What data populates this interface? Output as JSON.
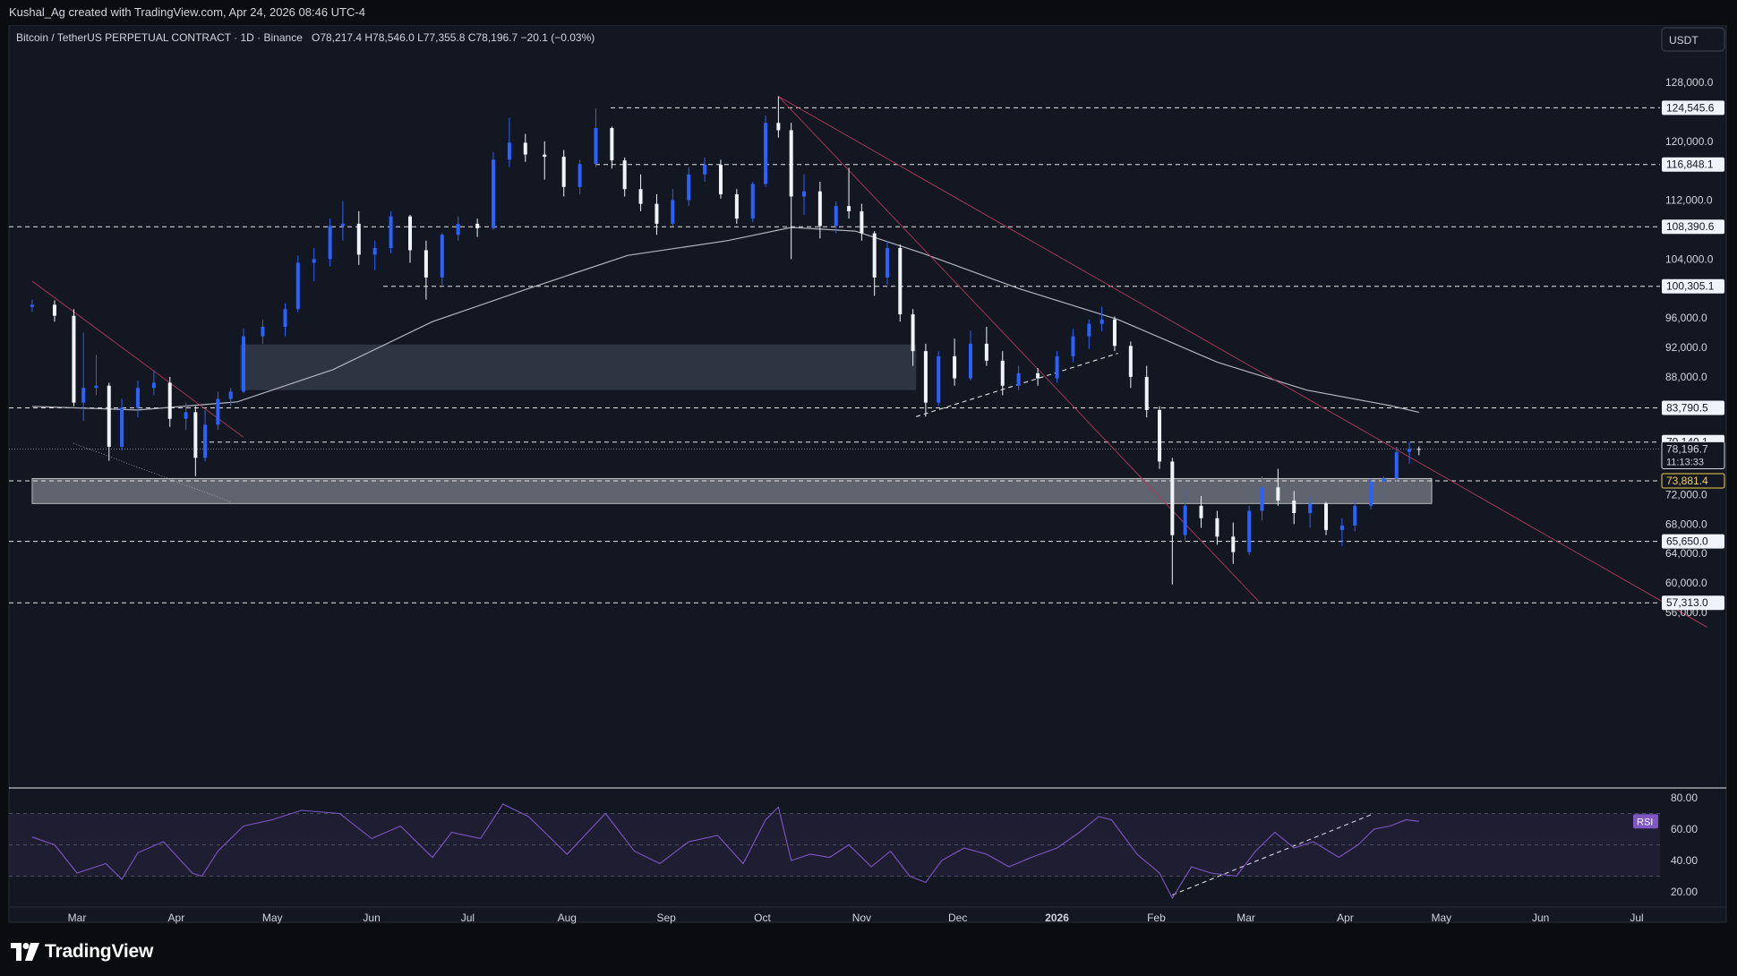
{
  "header": {
    "credit": "Kushal_Ag created with TradingView.com, Apr 24, 2026 08:46 UTC-4"
  },
  "chart_header": {
    "title": "Bitcoin / TetherUS PERPETUAL CONTRACT · 1D · Binance",
    "ohlc": "O78,217.4  H78,546.0  L77,355.8  C78,196.7  −20.1 (−0.03%)",
    "currency_button": "USDT"
  },
  "footer": {
    "brand": "TradingView"
  },
  "chart_data": {
    "type": "candlestick",
    "price_axis": {
      "min": 53000,
      "max": 131000,
      "ticks": [
        "128,000.0",
        "120,000.0",
        "112,000.0",
        "104,000.0",
        "96,000.0",
        "92,000.0",
        "88,000.0",
        "72,000.0",
        "68,000.0",
        "64,000.0",
        "60,000.0",
        "56,000.0"
      ],
      "tick_values": [
        128000,
        120000,
        112000,
        104000,
        96000,
        92000,
        88000,
        72000,
        68000,
        64000,
        60000,
        56000
      ]
    },
    "time_axis": {
      "labels": [
        "Mar",
        "Apr",
        "May",
        "Jun",
        "Jul",
        "Aug",
        "Sep",
        "Oct",
        "Nov",
        "Dec",
        "2026",
        "Feb",
        "Mar",
        "Apr",
        "May",
        "Jun",
        "Jul"
      ],
      "bold_label": "2026",
      "start": "2025-02-15",
      "end": "2026-07-31"
    },
    "horizontal_levels": [
      {
        "price": 124545.6,
        "label": "124,545.6"
      },
      {
        "price": 116848.1,
        "label": "116,848.1"
      },
      {
        "price": 108390.6,
        "label": "108,390.6"
      },
      {
        "price": 100305.1,
        "label": "100,305.1"
      },
      {
        "price": 83790.5,
        "label": "83,790.5"
      },
      {
        "price": 79140.1,
        "label": "79,140.1"
      },
      {
        "price": 73881.4,
        "label": "73,881.4",
        "highlight": "#f0d24a"
      },
      {
        "price": 65650.0,
        "label": "65,650.0"
      },
      {
        "price": 57313.0,
        "label": "57,313.0"
      }
    ],
    "last_price": {
      "price": 78196.7,
      "label": "78,196.7",
      "countdown": "11:13:33"
    },
    "zones": [
      {
        "from": "2025-04-21",
        "to": "2025-11-18",
        "low": 86200,
        "high": 92400
      },
      {
        "from": "2025-02-15",
        "to": "2026-04-28",
        "low": 70800,
        "high": 74200
      }
    ],
    "moving_average_200": [
      [
        "2025-02-15",
        84000
      ],
      [
        "2025-03-20",
        83500
      ],
      [
        "2025-04-20",
        84600
      ],
      [
        "2025-05-20",
        89000
      ],
      [
        "2025-06-20",
        95500
      ],
      [
        "2025-07-20",
        100000
      ],
      [
        "2025-08-20",
        104500
      ],
      [
        "2025-09-20",
        106500
      ],
      [
        "2025-10-10",
        108300
      ],
      [
        "2025-10-30",
        107800
      ],
      [
        "2025-11-20",
        104800
      ],
      [
        "2025-12-20",
        100000
      ],
      [
        "2026-01-20",
        95800
      ],
      [
        "2026-02-20",
        90000
      ],
      [
        "2026-03-20",
        86200
      ],
      [
        "2026-04-15",
        84100
      ],
      [
        "2026-04-24",
        83200
      ]
    ],
    "trendlines": [
      {
        "from": [
          "2025-02-15",
          101000
        ],
        "to": [
          "2025-04-22",
          79800
        ],
        "color": "#b3385c"
      },
      {
        "from": [
          "2025-10-06",
          126100
        ],
        "to": [
          "2026-07-23",
          54000
        ],
        "color": "#b3385c"
      },
      {
        "from": [
          "2025-10-06",
          126100
        ],
        "to": [
          "2026-03-05",
          57500
        ],
        "color": "#b3385c"
      },
      {
        "from": [
          "2025-11-18",
          82600
        ],
        "to": [
          "2026-01-20",
          91200
        ],
        "color": "#e0e0e0",
        "dashed": true
      },
      {
        "from": [
          "2026-02-06",
          59800
        ],
        "to": [
          "2026-04-10",
          69500
        ],
        "color": "#e0e0e0",
        "dashed": true,
        "pane": "rsi"
      }
    ],
    "candles": [
      [
        "2025-02-15",
        97500,
        98500,
        96800,
        97800
      ],
      [
        "2025-02-22",
        97800,
        98400,
        95500,
        96300
      ],
      [
        "2025-02-28",
        96300,
        97200,
        84000,
        84500
      ],
      [
        "2025-03-03",
        84500,
        94000,
        82000,
        86500
      ],
      [
        "2025-03-07",
        86500,
        91000,
        85500,
        86800
      ],
      [
        "2025-03-11",
        86800,
        87200,
        76600,
        78500
      ],
      [
        "2025-03-15",
        78500,
        85000,
        78000,
        83800
      ],
      [
        "2025-03-20",
        83800,
        87500,
        82500,
        86500
      ],
      [
        "2025-03-25",
        86500,
        88800,
        85500,
        87200
      ],
      [
        "2025-03-30",
        87200,
        88000,
        81200,
        82300
      ],
      [
        "2025-04-04",
        82300,
        84500,
        80800,
        83200
      ],
      [
        "2025-04-07",
        83200,
        84000,
        74500,
        77000
      ],
      [
        "2025-04-10",
        77000,
        83500,
        76500,
        81500
      ],
      [
        "2025-04-14",
        81500,
        86000,
        80800,
        85000
      ],
      [
        "2025-04-18",
        85000,
        86500,
        84000,
        86000
      ],
      [
        "2025-04-22",
        86000,
        94500,
        85800,
        93500
      ],
      [
        "2025-04-28",
        93500,
        95800,
        92500,
        94800
      ],
      [
        "2025-05-05",
        94800,
        98000,
        93500,
        97200
      ],
      [
        "2025-05-09",
        97200,
        104500,
        96800,
        103500
      ],
      [
        "2025-05-14",
        103500,
        105500,
        101000,
        104000
      ],
      [
        "2025-05-19",
        104000,
        109500,
        103000,
        108500
      ],
      [
        "2025-05-23",
        108500,
        111900,
        106500,
        108800
      ],
      [
        "2025-05-28",
        108800,
        110500,
        103200,
        104600
      ],
      [
        "2025-06-02",
        104600,
        106500,
        102500,
        105500
      ],
      [
        "2025-06-07",
        105500,
        110500,
        104800,
        109800
      ],
      [
        "2025-06-13",
        109800,
        110000,
        103500,
        105200
      ],
      [
        "2025-06-18",
        105200,
        106500,
        98500,
        101500
      ],
      [
        "2025-06-23",
        101500,
        107500,
        100500,
        107300
      ],
      [
        "2025-06-28",
        107300,
        109800,
        106500,
        108800
      ],
      [
        "2025-07-04",
        108800,
        109500,
        107000,
        108200
      ],
      [
        "2025-07-09",
        108200,
        118500,
        108000,
        117500
      ],
      [
        "2025-07-14",
        117500,
        123200,
        116500,
        119800
      ],
      [
        "2025-07-19",
        119800,
        121000,
        117200,
        118200
      ],
      [
        "2025-07-25",
        118200,
        120000,
        114800,
        117900
      ],
      [
        "2025-07-31",
        117900,
        118800,
        112500,
        113800
      ],
      [
        "2025-08-05",
        113800,
        117500,
        112800,
        116900
      ],
      [
        "2025-08-10",
        116900,
        124500,
        116500,
        121800
      ],
      [
        "2025-08-15",
        121800,
        122000,
        116300,
        117400
      ],
      [
        "2025-08-19",
        117400,
        117800,
        112500,
        113500
      ],
      [
        "2025-08-24",
        113500,
        115500,
        110500,
        111500
      ],
      [
        "2025-08-29",
        111500,
        112800,
        107300,
        108800
      ],
      [
        "2025-09-03",
        108800,
        113500,
        108500,
        112000
      ],
      [
        "2025-09-08",
        112000,
        116500,
        111200,
        115500
      ],
      [
        "2025-09-13",
        115500,
        117800,
        114500,
        116800
      ],
      [
        "2025-09-18",
        116800,
        117500,
        112200,
        112800
      ],
      [
        "2025-09-23",
        112800,
        113500,
        108800,
        109500
      ],
      [
        "2025-09-28",
        109500,
        114500,
        109000,
        114200
      ],
      [
        "2025-10-02",
        114200,
        123500,
        113800,
        122500
      ],
      [
        "2025-10-06",
        122500,
        126100,
        120500,
        121500
      ],
      [
        "2025-10-10",
        121500,
        122500,
        104000,
        112500
      ],
      [
        "2025-10-14",
        112500,
        115500,
        110000,
        113200
      ],
      [
        "2025-10-19",
        113200,
        114500,
        106800,
        108500
      ],
      [
        "2025-10-24",
        108500,
        111800,
        107500,
        111200
      ],
      [
        "2025-10-28",
        111200,
        116400,
        109500,
        110500
      ],
      [
        "2025-11-01",
        110500,
        111500,
        106500,
        107500
      ],
      [
        "2025-11-05",
        107500,
        107800,
        99000,
        101500
      ],
      [
        "2025-11-09",
        101500,
        106500,
        100500,
        105500
      ],
      [
        "2025-11-13",
        105500,
        106000,
        95500,
        96500
      ],
      [
        "2025-11-17",
        96500,
        97200,
        89500,
        91500
      ],
      [
        "2025-11-21",
        91500,
        92500,
        82600,
        84500
      ],
      [
        "2025-11-25",
        84500,
        91500,
        84000,
        90800
      ],
      [
        "2025-11-30",
        90800,
        93200,
        86800,
        87800
      ],
      [
        "2025-12-05",
        87800,
        94300,
        87500,
        92500
      ],
      [
        "2025-12-10",
        92500,
        94800,
        89500,
        90200
      ],
      [
        "2025-12-15",
        90200,
        91500,
        85500,
        86800
      ],
      [
        "2025-12-20",
        86800,
        89500,
        86200,
        88500
      ],
      [
        "2025-12-26",
        88500,
        89200,
        86800,
        87800
      ],
      [
        "2026-01-01",
        87800,
        91500,
        87200,
        90800
      ],
      [
        "2026-01-06",
        90800,
        94500,
        90000,
        93500
      ],
      [
        "2026-01-11",
        93500,
        95800,
        91800,
        95200
      ],
      [
        "2026-01-15",
        95200,
        97500,
        94200,
        95800
      ],
      [
        "2026-01-19",
        95800,
        96200,
        91500,
        92200
      ],
      [
        "2026-01-24",
        92200,
        92800,
        86500,
        88000
      ],
      [
        "2026-01-29",
        88000,
        89500,
        82500,
        83500
      ],
      [
        "2026-02-02",
        83500,
        84000,
        75500,
        76500
      ],
      [
        "2026-02-06",
        76500,
        77000,
        59800,
        66500
      ],
      [
        "2026-02-10",
        66500,
        72800,
        65800,
        70500
      ],
      [
        "2026-02-15",
        70500,
        71800,
        67500,
        68800
      ],
      [
        "2026-02-20",
        68800,
        69800,
        65200,
        66300
      ],
      [
        "2026-02-25",
        66300,
        68200,
        62600,
        64200
      ],
      [
        "2026-03-02",
        64200,
        70500,
        63800,
        69800
      ],
      [
        "2026-03-06",
        69800,
        74500,
        68500,
        73000
      ],
      [
        "2026-03-11",
        73000,
        75500,
        70500,
        71200
      ],
      [
        "2026-03-16",
        71200,
        72500,
        68000,
        69500
      ],
      [
        "2026-03-21",
        69500,
        71800,
        67500,
        70800
      ],
      [
        "2026-03-26",
        70800,
        71000,
        66500,
        67200
      ],
      [
        "2026-03-31",
        67200,
        68800,
        65000,
        67800
      ],
      [
        "2026-04-04",
        67800,
        71200,
        67000,
        70500
      ],
      [
        "2026-04-09",
        70500,
        74200,
        70000,
        73800
      ],
      [
        "2026-04-13",
        73800,
        74500,
        71500,
        74200
      ],
      [
        "2026-04-17",
        74200,
        78500,
        73800,
        77800
      ],
      [
        "2026-04-21",
        77800,
        79140,
        76200,
        78217
      ],
      [
        "2026-04-24",
        78217,
        78546,
        77356,
        78197
      ]
    ],
    "rsi": {
      "label": "RSI",
      "ticks": [
        "80.00",
        "60.00",
        "40.00",
        "20.00"
      ],
      "tick_values": [
        80,
        60,
        40,
        20
      ],
      "band": [
        30,
        70
      ],
      "points": [
        [
          "2025-02-15",
          55
        ],
        [
          "2025-02-22",
          50
        ],
        [
          "2025-03-01",
          32
        ],
        [
          "2025-03-10",
          38
        ],
        [
          "2025-03-15",
          28
        ],
        [
          "2025-03-20",
          45
        ],
        [
          "2025-03-28",
          52
        ],
        [
          "2025-04-06",
          32
        ],
        [
          "2025-04-09",
          30
        ],
        [
          "2025-04-14",
          46
        ],
        [
          "2025-04-22",
          62
        ],
        [
          "2025-05-01",
          66
        ],
        [
          "2025-05-10",
          72
        ],
        [
          "2025-05-22",
          70
        ],
        [
          "2025-06-01",
          54
        ],
        [
          "2025-06-10",
          62
        ],
        [
          "2025-06-20",
          42
        ],
        [
          "2025-06-26",
          58
        ],
        [
          "2025-07-05",
          54
        ],
        [
          "2025-07-12",
          76
        ],
        [
          "2025-07-20",
          68
        ],
        [
          "2025-08-01",
          44
        ],
        [
          "2025-08-13",
          70
        ],
        [
          "2025-08-22",
          46
        ],
        [
          "2025-08-30",
          38
        ],
        [
          "2025-09-08",
          52
        ],
        [
          "2025-09-17",
          56
        ],
        [
          "2025-09-25",
          38
        ],
        [
          "2025-10-02",
          66
        ],
        [
          "2025-10-06",
          74
        ],
        [
          "2025-10-10",
          40
        ],
        [
          "2025-10-16",
          44
        ],
        [
          "2025-10-22",
          42
        ],
        [
          "2025-10-28",
          50
        ],
        [
          "2025-11-04",
          36
        ],
        [
          "2025-11-10",
          46
        ],
        [
          "2025-11-16",
          30
        ],
        [
          "2025-11-21",
          26
        ],
        [
          "2025-11-26",
          40
        ],
        [
          "2025-12-03",
          48
        ],
        [
          "2025-12-10",
          44
        ],
        [
          "2025-12-17",
          36
        ],
        [
          "2025-12-24",
          42
        ],
        [
          "2026-01-01",
          48
        ],
        [
          "2026-01-08",
          58
        ],
        [
          "2026-01-14",
          68
        ],
        [
          "2026-01-18",
          66
        ],
        [
          "2026-01-26",
          44
        ],
        [
          "2026-02-02",
          32
        ],
        [
          "2026-02-06",
          16
        ],
        [
          "2026-02-12",
          36
        ],
        [
          "2026-02-18",
          32
        ],
        [
          "2026-02-26",
          30
        ],
        [
          "2026-03-04",
          46
        ],
        [
          "2026-03-10",
          58
        ],
        [
          "2026-03-16",
          48
        ],
        [
          "2026-03-22",
          52
        ],
        [
          "2026-03-30",
          42
        ],
        [
          "2026-04-05",
          50
        ],
        [
          "2026-04-10",
          60
        ],
        [
          "2026-04-15",
          62
        ],
        [
          "2026-04-20",
          66
        ],
        [
          "2026-04-24",
          65
        ]
      ]
    }
  }
}
